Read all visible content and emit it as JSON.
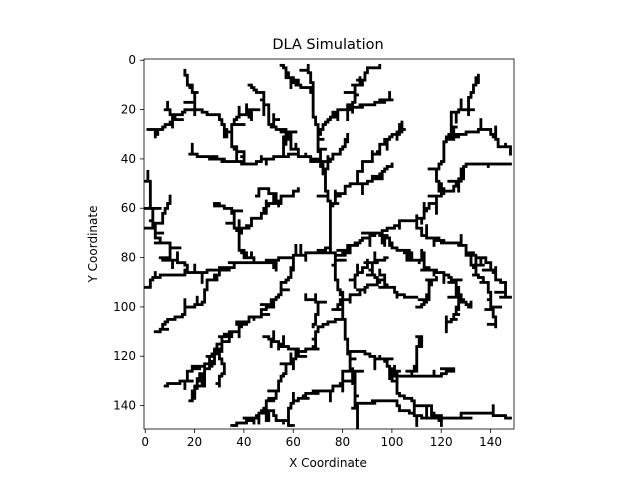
{
  "chart_data": {
    "type": "heatmap",
    "title": "DLA Simulation",
    "xlabel": "X Coordinate",
    "ylabel": "Y Coordinate",
    "grid_size": 150,
    "xlim": [
      0,
      150
    ],
    "ylim": [
      150,
      0
    ],
    "x_ticks": [
      "0",
      "20",
      "40",
      "60",
      "80",
      "100",
      "120",
      "140"
    ],
    "y_ticks": [
      "0",
      "20",
      "40",
      "60",
      "80",
      "100",
      "120",
      "140"
    ],
    "x_tick_values": [
      0,
      20,
      40,
      60,
      80,
      100,
      120,
      140
    ],
    "y_tick_values": [
      0,
      20,
      40,
      60,
      80,
      100,
      120,
      140
    ],
    "colormap": [
      "#ffffff",
      "#000000"
    ],
    "grid": false,
    "seed_point": [
      75,
      75
    ],
    "branches": [
      [
        [
          75,
          75
        ],
        [
          75,
          60
        ],
        [
          72,
          45
        ],
        [
          70,
          30
        ],
        [
          68,
          15
        ],
        [
          66,
          2
        ]
      ],
      [
        [
          72,
          45
        ],
        [
          62,
          38
        ],
        [
          50,
          40
        ],
        [
          40,
          42
        ],
        [
          28,
          40
        ],
        [
          18,
          38
        ]
      ],
      [
        [
          62,
          38
        ],
        [
          55,
          28
        ],
        [
          48,
          18
        ],
        [
          42,
          10
        ]
      ],
      [
        [
          40,
          42
        ],
        [
          35,
          30
        ],
        [
          30,
          22
        ],
        [
          20,
          20
        ],
        [
          12,
          24
        ],
        [
          8,
          20
        ]
      ],
      [
        [
          20,
          20
        ],
        [
          18,
          10
        ],
        [
          16,
          4
        ]
      ],
      [
        [
          70,
          30
        ],
        [
          80,
          20
        ],
        [
          88,
          10
        ],
        [
          95,
          2
        ]
      ],
      [
        [
          80,
          20
        ],
        [
          92,
          18
        ],
        [
          100,
          16
        ]
      ],
      [
        [
          68,
          15
        ],
        [
          60,
          8
        ],
        [
          55,
          2
        ]
      ],
      [
        [
          75,
          60
        ],
        [
          85,
          50
        ],
        [
          95,
          48
        ],
        [
          100,
          42
        ]
      ],
      [
        [
          85,
          50
        ],
        [
          92,
          40
        ],
        [
          98,
          32
        ],
        [
          105,
          28
        ]
      ],
      [
        [
          80,
          78
        ],
        [
          95,
          70
        ],
        [
          110,
          65
        ],
        [
          120,
          55
        ],
        [
          128,
          45
        ],
        [
          135,
          42
        ],
        [
          148,
          42
        ]
      ],
      [
        [
          120,
          55
        ],
        [
          118,
          45
        ],
        [
          122,
          32
        ],
        [
          128,
          20
        ],
        [
          135,
          8
        ]
      ],
      [
        [
          122,
          32
        ],
        [
          130,
          30
        ],
        [
          140,
          28
        ]
      ],
      [
        [
          110,
          65
        ],
        [
          118,
          72
        ],
        [
          130,
          78
        ],
        [
          140,
          82
        ],
        [
          148,
          96
        ]
      ],
      [
        [
          130,
          78
        ],
        [
          135,
          88
        ],
        [
          140,
          100
        ],
        [
          142,
          108
        ]
      ],
      [
        [
          95,
          70
        ],
        [
          105,
          78
        ],
        [
          115,
          85
        ],
        [
          125,
          90
        ],
        [
          132,
          100
        ]
      ],
      [
        [
          75,
          75
        ],
        [
          60,
          80
        ],
        [
          45,
          82
        ],
        [
          30,
          84
        ],
        [
          18,
          86
        ],
        [
          5,
          88
        ],
        [
          0,
          92
        ]
      ],
      [
        [
          45,
          82
        ],
        [
          38,
          70
        ],
        [
          35,
          62
        ],
        [
          28,
          58
        ]
      ],
      [
        [
          38,
          70
        ],
        [
          48,
          62
        ],
        [
          55,
          58
        ],
        [
          62,
          52
        ]
      ],
      [
        [
          30,
          84
        ],
        [
          25,
          92
        ],
        [
          20,
          100
        ],
        [
          12,
          105
        ],
        [
          4,
          110
        ]
      ],
      [
        [
          18,
          86
        ],
        [
          10,
          80
        ],
        [
          4,
          70
        ],
        [
          2,
          58
        ],
        [
          1,
          45
        ]
      ],
      [
        [
          4,
          70
        ],
        [
          8,
          62
        ],
        [
          10,
          55
        ]
      ],
      [
        [
          75,
          75
        ],
        [
          78,
          90
        ],
        [
          80,
          105
        ],
        [
          82,
          118
        ],
        [
          84,
          130
        ],
        [
          85,
          140
        ],
        [
          86,
          150
        ]
      ],
      [
        [
          80,
          105
        ],
        [
          70,
          110
        ],
        [
          62,
          118
        ],
        [
          55,
          128
        ],
        [
          50,
          138
        ],
        [
          45,
          145
        ],
        [
          35,
          148
        ]
      ],
      [
        [
          62,
          118
        ],
        [
          55,
          115
        ],
        [
          48,
          112
        ]
      ],
      [
        [
          82,
          118
        ],
        [
          92,
          120
        ],
        [
          100,
          125
        ],
        [
          108,
          128
        ],
        [
          118,
          128
        ],
        [
          125,
          125
        ]
      ],
      [
        [
          84,
          130
        ],
        [
          70,
          135
        ],
        [
          62,
          138
        ],
        [
          58,
          145
        ]
      ],
      [
        [
          85,
          140
        ],
        [
          95,
          138
        ],
        [
          105,
          142
        ],
        [
          115,
          145
        ],
        [
          128,
          145
        ],
        [
          140,
          143
        ],
        [
          148,
          145
        ]
      ],
      [
        [
          100,
          125
        ],
        [
          102,
          135
        ],
        [
          110,
          140
        ],
        [
          120,
          148
        ]
      ],
      [
        [
          60,
          80
        ],
        [
          55,
          92
        ],
        [
          50,
          100
        ],
        [
          42,
          104
        ],
        [
          35,
          110
        ],
        [
          28,
          118
        ],
        [
          22,
          125
        ],
        [
          15,
          130
        ],
        [
          8,
          132
        ]
      ],
      [
        [
          35,
          110
        ],
        [
          30,
          118
        ],
        [
          25,
          125
        ],
        [
          20,
          135
        ],
        [
          18,
          138
        ]
      ],
      [
        [
          28,
          118
        ],
        [
          32,
          125
        ],
        [
          30,
          132
        ]
      ],
      [
        [
          95,
          85
        ],
        [
          100,
          92
        ],
        [
          108,
          96
        ]
      ],
      [
        [
          90,
          82
        ],
        [
          95,
          90
        ],
        [
          85,
          95
        ],
        [
          78,
          100
        ]
      ],
      [
        [
          125,
          90
        ],
        [
          128,
          98
        ],
        [
          125,
          105
        ],
        [
          122,
          110
        ]
      ],
      [
        [
          65,
          95
        ],
        [
          70,
          100
        ],
        [
          68,
          108
        ]
      ],
      [
        [
          52,
          22
        ],
        [
          58,
          30
        ],
        [
          56,
          38
        ]
      ],
      [
        [
          98,
          80
        ],
        [
          88,
          86
        ],
        [
          85,
          92
        ]
      ],
      [
        [
          110,
          100
        ],
        [
          115,
          95
        ],
        [
          118,
          88
        ]
      ],
      [
        [
          55,
          58
        ],
        [
          50,
          52
        ],
        [
          45,
          55
        ]
      ],
      [
        [
          35,
          30
        ],
        [
          38,
          22
        ],
        [
          45,
          20
        ]
      ],
      [
        [
          108,
          128
        ],
        [
          110,
          120
        ],
        [
          112,
          112
        ]
      ],
      [
        [
          72,
          45
        ],
        [
          78,
          38
        ],
        [
          82,
          30
        ]
      ],
      [
        [
          45,
          145
        ],
        [
          52,
          142
        ],
        [
          60,
          148
        ]
      ],
      [
        [
          140,
          28
        ],
        [
          145,
          35
        ],
        [
          148,
          38
        ]
      ],
      [
        [
          12,
          24
        ],
        [
          5,
          30
        ],
        [
          3,
          28
        ]
      ]
    ]
  }
}
